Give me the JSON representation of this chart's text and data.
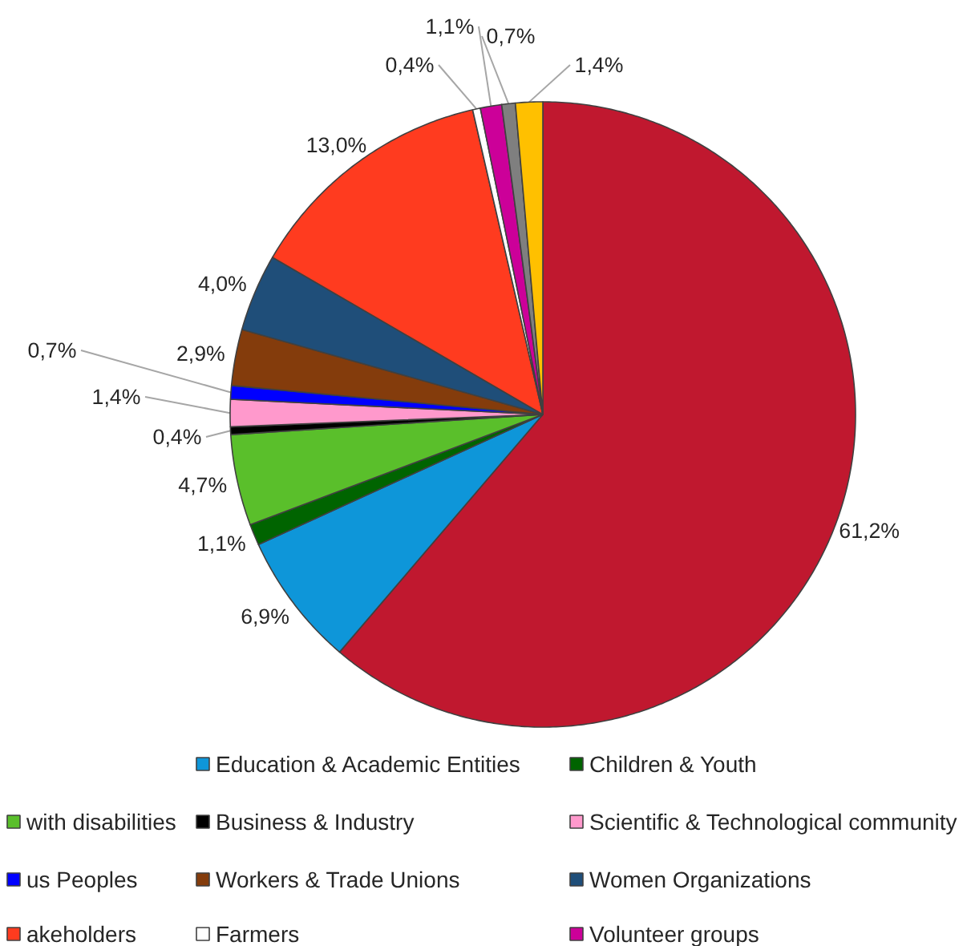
{
  "chart_data": {
    "type": "pie",
    "categories": [
      null,
      "Education & Academic Entities",
      "Children & Youth",
      "with disabilities",
      "Business & Industry",
      "Scientific & Technological community",
      "us Peoples",
      "Workers & Trade Unions",
      "Women Organizations",
      "akeholders",
      "Farmers",
      "Volunteer groups",
      null,
      null
    ],
    "values": [
      61.2,
      6.9,
      1.1,
      4.7,
      0.4,
      1.4,
      0.7,
      2.9,
      4.0,
      13.0,
      0.4,
      1.1,
      0.7,
      1.4
    ],
    "value_labels": [
      "61,2%",
      "6,9%",
      "1,1%",
      "4,7%",
      "0,4%",
      "1,4%",
      "0,7%",
      "2,9%",
      "4,0%",
      "13,0%",
      "0,4%",
      "1,1%",
      "0,7%",
      "1,4%"
    ],
    "colors": [
      "#c0182f",
      "#0e96d9",
      "#006400",
      "#5abf2b",
      "#000000",
      "#ff99cc",
      "#0000ff",
      "#843c0c",
      "#1f4e79",
      "#ff3b1f",
      "#ffffff",
      "#cc0099",
      "#7f7f7f",
      "#ffc000"
    ],
    "legend": "bottom"
  }
}
